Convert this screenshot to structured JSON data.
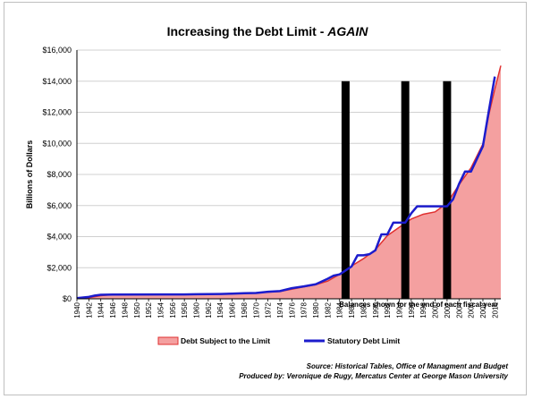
{
  "chart_data": {
    "type": "area",
    "title_main": "Increasing the Debt Limit - ",
    "title_emphasis": "AGAIN",
    "ylabel": "Billions of Dollars",
    "xlabel": "",
    "ylim": [
      0,
      16000
    ],
    "y_ticks": [
      0,
      2000,
      4000,
      6000,
      8000,
      10000,
      12000,
      14000,
      16000
    ],
    "y_tick_labels": [
      "$0",
      "$2,000",
      "$4,000",
      "$6,000",
      "$8,000",
      "$10,000",
      "$12,000",
      "$14,000",
      "$16,000"
    ],
    "x_range": [
      1940,
      2011
    ],
    "x_tick_labels": [
      "1940",
      "1942",
      "1944",
      "1946",
      "1948",
      "1950",
      "1952",
      "1954",
      "1956",
      "1958",
      "1960",
      "1962",
      "1964",
      "1966",
      "1968",
      "1970",
      "1972",
      "1974",
      "1976",
      "1978",
      "1980",
      "1982",
      "1984",
      "1986",
      "1988",
      "1990",
      "1992",
      "1994",
      "1996",
      "1998",
      "2000",
      "2002",
      "2004",
      "2006",
      "2008",
      "2010"
    ],
    "grid": true,
    "legend_position": "bottom",
    "annotation": "Balances shown for the end of each fiscal year",
    "series": [
      {
        "name": "Debt Subject to the Limit",
        "kind": "area",
        "color": "#f4a0a0",
        "line_color": "#e03030",
        "x": [
          1940,
          1942,
          1944,
          1946,
          1948,
          1950,
          1955,
          1960,
          1965,
          1970,
          1972,
          1974,
          1976,
          1978,
          1980,
          1982,
          1984,
          1986,
          1988,
          1990,
          1992,
          1994,
          1996,
          1998,
          2000,
          2002,
          2004,
          2006,
          2008,
          2009,
          2010,
          2011
        ],
        "values": [
          43,
          72,
          200,
          270,
          252,
          257,
          274,
          284,
          314,
          373,
          428,
          476,
          620,
          772,
          908,
          1143,
          1573,
          2111,
          2586,
          3161,
          4065,
          4605,
          5137,
          5440,
          5592,
          6161,
          7333,
          8420,
          9960,
          11850,
          13500,
          15000
        ]
      },
      {
        "name": "Statutory Debt Limit",
        "kind": "line",
        "color": "#1c1ccc",
        "x": [
          1940,
          1942,
          1943,
          1944,
          1946,
          1954,
          1956,
          1958,
          1959,
          1960,
          1962,
          1964,
          1966,
          1968,
          1970,
          1972,
          1974,
          1976,
          1978,
          1980,
          1982,
          1983,
          1984,
          1985,
          1986,
          1987,
          1988,
          1989,
          1990,
          1991,
          1992,
          1993,
          1994,
          1995,
          1996,
          1997,
          1998,
          1999,
          2000,
          2001,
          2002,
          2003,
          2004,
          2005,
          2006,
          2007,
          2008,
          2009,
          2010
        ],
        "values": [
          45,
          125,
          210,
          260,
          275,
          281,
          278,
          283,
          290,
          295,
          300,
          308,
          330,
          358,
          377,
          450,
          495,
          682,
          798,
          935,
          1290,
          1490,
          1573,
          1824,
          2079,
          2800,
          2800,
          2870,
          3123,
          4145,
          4145,
          4900,
          4900,
          4900,
          5500,
          5950,
          5950,
          5950,
          5950,
          5950,
          5950,
          6400,
          7384,
          8184,
          8184,
          9000,
          9815,
          12104,
          14294
        ]
      }
    ],
    "markers": {
      "years": [
        1985,
        1995,
        2002
      ],
      "value": 14000,
      "color": "#000000"
    },
    "source_line1": "Source: Historical Tables, Office of Managment and Budget",
    "source_line2": "Produced by: Veronique de Rugy, Mercatus Center at George Mason University"
  }
}
